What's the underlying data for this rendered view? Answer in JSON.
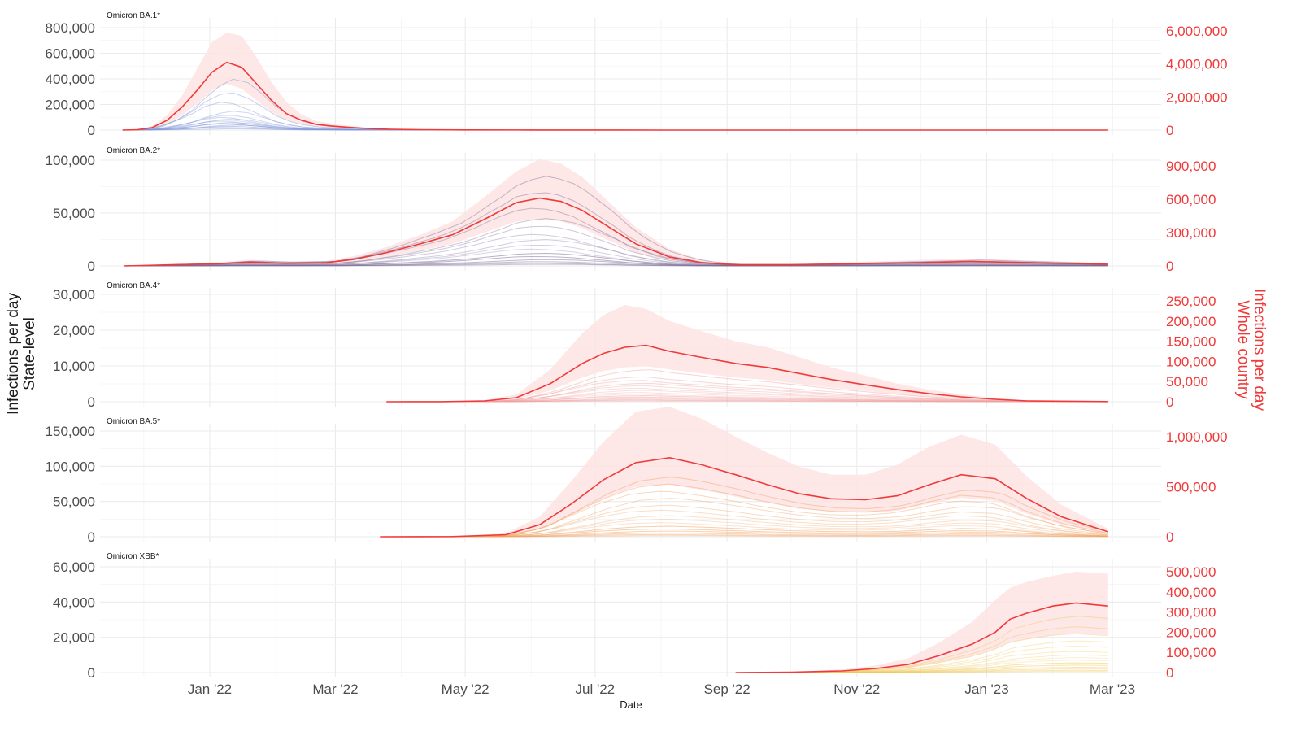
{
  "chart_data": {
    "type": "line",
    "xlabel": "Date",
    "ylabel_left": [
      "Infections per day",
      "State-level"
    ],
    "ylabel_right": [
      "Infections per day",
      "Whole country"
    ],
    "x_ticks": [
      "2022-01-01",
      "2022-03-01",
      "2022-05-01",
      "2022-07-01",
      "2022-09-01",
      "2022-11-01",
      "2023-01-01",
      "2023-03-01"
    ],
    "x_tick_labels": [
      "Jan '22",
      "Mar '22",
      "May '22",
      "Jul '22",
      "Sep '22",
      "Nov '22",
      "Jan '23",
      "Mar '23"
    ],
    "xlim": [
      "2021-11-01",
      "2023-03-15"
    ],
    "grid": true,
    "colors": {
      "country_line": "#f03a3a",
      "country_band": "#fde3e3",
      "right_axis": "#f03a3a",
      "axis_text": "#4d4d4d",
      "grid": "#ebebeb"
    },
    "panels": [
      {
        "title": "Omicron BA.1*",
        "state_color": "#7f95d8",
        "left_ticks": [
          0,
          200000,
          400000,
          600000,
          800000
        ],
        "left_tick_labels": [
          "0",
          "200,000",
          "400,000",
          "600,000",
          "800,000"
        ],
        "right_ticks": [
          0,
          2000000,
          4000000,
          6000000
        ],
        "right_tick_labels": [
          "0",
          "2,000,000",
          "4,000,000",
          "6,000,000"
        ],
        "left_ylim": [
          0,
          800000
        ],
        "right_ylim": [
          0,
          6200000
        ],
        "country": {
          "x": [
            "2021-11-21",
            "2021-11-28",
            "2021-12-05",
            "2021-12-12",
            "2021-12-19",
            "2021-12-26",
            "2022-01-02",
            "2022-01-09",
            "2022-01-16",
            "2022-01-23",
            "2022-01-30",
            "2022-02-06",
            "2022-02-13",
            "2022-02-20",
            "2022-02-27",
            "2022-03-06",
            "2022-03-13",
            "2022-03-20",
            "2022-03-27",
            "2022-04-10",
            "2022-05-01",
            "2022-06-01",
            "2022-08-01",
            "2022-10-01",
            "2022-12-01",
            "2023-01-15",
            "2023-02-27"
          ],
          "y": [
            0,
            20000,
            150000,
            600000,
            1400000,
            2400000,
            3500000,
            4100000,
            3800000,
            2800000,
            1800000,
            1000000,
            600000,
            350000,
            250000,
            180000,
            120000,
            80000,
            50000,
            25000,
            10000,
            5000,
            2000,
            1000,
            1000,
            500,
            500
          ],
          "lower": [
            0,
            10000,
            80000,
            350000,
            900000,
            1600000,
            2400000,
            2800000,
            2500000,
            1800000,
            1100000,
            600000,
            350000,
            200000,
            140000,
            100000,
            70000,
            45000,
            28000,
            14000,
            6000,
            3000,
            1000,
            500,
            500,
            300,
            300
          ],
          "upper": [
            0,
            30000,
            250000,
            900000,
            2100000,
            3700000,
            5300000,
            5900000,
            5700000,
            4400000,
            2900000,
            1700000,
            950000,
            560000,
            400000,
            280000,
            190000,
            120000,
            80000,
            40000,
            15000,
            8000,
            3000,
            1500,
            1500,
            800,
            800
          ]
        },
        "states_scale": [
          400000,
          300000,
          220000,
          150000,
          120000,
          100000,
          90000,
          80000,
          70000,
          60000,
          50000,
          40000,
          30000,
          20000,
          10000
        ]
      },
      {
        "title": "Omicron BA.2*",
        "state_color": "#7a6a96",
        "left_ticks": [
          0,
          50000,
          100000
        ],
        "left_tick_labels": [
          "0",
          "50,000",
          "100,000"
        ],
        "right_ticks": [
          0,
          300000,
          600000,
          900000
        ],
        "right_tick_labels": [
          "0",
          "300,000",
          "600,000",
          "900,000"
        ],
        "left_ylim": [
          0,
          140000
        ],
        "right_ylim": [
          0,
          1050000
        ],
        "country": {
          "x": [
            "2021-11-22",
            "2021-12-15",
            "2022-01-05",
            "2022-01-20",
            "2022-02-05",
            "2022-02-25",
            "2022-03-10",
            "2022-03-25",
            "2022-04-10",
            "2022-04-25",
            "2022-05-10",
            "2022-05-25",
            "2022-06-05",
            "2022-06-15",
            "2022-06-25",
            "2022-07-05",
            "2022-07-20",
            "2022-08-05",
            "2022-08-20",
            "2022-09-05",
            "2022-10-01",
            "2022-11-01",
            "2022-12-01",
            "2022-12-25",
            "2023-01-20",
            "2023-02-27"
          ],
          "y": [
            0,
            10000,
            20000,
            35000,
            25000,
            30000,
            60000,
            120000,
            200000,
            280000,
            420000,
            570000,
            610000,
            580000,
            500000,
            380000,
            200000,
            80000,
            30000,
            10000,
            10000,
            20000,
            30000,
            40000,
            30000,
            15000
          ],
          "lower": [
            0,
            5000,
            10000,
            20000,
            15000,
            18000,
            35000,
            80000,
            140000,
            200000,
            300000,
            400000,
            420000,
            400000,
            340000,
            250000,
            120000,
            45000,
            15000,
            5000,
            5000,
            10000,
            15000,
            20000,
            15000,
            8000
          ],
          "upper": [
            0,
            20000,
            35000,
            55000,
            40000,
            45000,
            90000,
            170000,
            280000,
            400000,
            620000,
            850000,
            960000,
            920000,
            800000,
            620000,
            350000,
            150000,
            55000,
            20000,
            20000,
            35000,
            55000,
            65000,
            50000,
            25000
          ]
        },
        "states_scale": [
          85000,
          70000,
          55000,
          45000,
          38000,
          30000,
          25000,
          20000,
          16000,
          12000,
          9000,
          6000,
          4000,
          2500,
          1500
        ]
      },
      {
        "title": "Omicron BA.4*",
        "state_color": "#f0a0a0",
        "left_ticks": [
          0,
          10000,
          20000,
          30000
        ],
        "left_tick_labels": [
          "0",
          "10,000",
          "20,000",
          "30,000"
        ],
        "right_ticks": [
          0,
          50000,
          100000,
          150000,
          200000,
          250000
        ],
        "right_tick_labels": [
          "0",
          "50,000",
          "100,000",
          "150,000",
          "200,000",
          "250,000"
        ],
        "left_ylim": [
          0,
          34000
        ],
        "right_ylim": [
          0,
          270000
        ],
        "country": {
          "x": [
            "2022-03-25",
            "2022-04-20",
            "2022-05-10",
            "2022-05-25",
            "2022-06-10",
            "2022-06-25",
            "2022-07-05",
            "2022-07-15",
            "2022-07-25",
            "2022-08-05",
            "2022-08-20",
            "2022-09-05",
            "2022-09-20",
            "2022-10-05",
            "2022-10-20",
            "2022-11-05",
            "2022-11-20",
            "2022-12-05",
            "2022-12-20",
            "2023-01-05",
            "2023-01-20",
            "2023-02-27"
          ],
          "y": [
            0,
            200,
            2000,
            10000,
            45000,
            95000,
            120000,
            135000,
            140000,
            125000,
            110000,
            95000,
            85000,
            70000,
            55000,
            42000,
            30000,
            20000,
            12000,
            6000,
            2000,
            500
          ],
          "lower": [
            0,
            100,
            1000,
            6000,
            28000,
            60000,
            76000,
            85000,
            88000,
            80000,
            70000,
            60000,
            54000,
            44000,
            35000,
            27000,
            19000,
            12000,
            7000,
            3500,
            1200,
            300
          ],
          "upper": [
            0,
            400,
            4000,
            18000,
            80000,
            170000,
            215000,
            240000,
            230000,
            200000,
            175000,
            150000,
            135000,
            110000,
            85000,
            65000,
            45000,
            30000,
            18000,
            9000,
            3500,
            800
          ]
        },
        "states_scale": [
          9000,
          7000,
          6000,
          5200,
          4500,
          3800,
          3200,
          2600,
          2100,
          1700,
          1300,
          900,
          600,
          400,
          200
        ]
      },
      {
        "title": "Omicron BA.5*",
        "state_color": "#f0a060",
        "left_ticks": [
          0,
          50000,
          100000,
          150000
        ],
        "left_tick_labels": [
          "0",
          "50,000",
          "100,000",
          "150,000"
        ],
        "right_ticks": [
          0,
          500000,
          1000000
        ],
        "right_tick_labels": [
          "0",
          "500,000",
          "1,000,000"
        ],
        "left_ylim": [
          0,
          180000
        ],
        "right_ylim": [
          0,
          1340000
        ],
        "country": {
          "x": [
            "2022-03-22",
            "2022-04-25",
            "2022-05-20",
            "2022-06-05",
            "2022-06-20",
            "2022-07-05",
            "2022-07-20",
            "2022-08-05",
            "2022-08-20",
            "2022-09-05",
            "2022-09-20",
            "2022-10-05",
            "2022-10-20",
            "2022-11-05",
            "2022-11-20",
            "2022-12-05",
            "2022-12-20",
            "2023-01-05",
            "2023-01-20",
            "2023-02-05",
            "2023-02-27"
          ],
          "y": [
            0,
            2000,
            20000,
            120000,
            330000,
            570000,
            740000,
            790000,
            720000,
            620000,
            520000,
            430000,
            380000,
            370000,
            410000,
            520000,
            620000,
            580000,
            380000,
            200000,
            50000
          ],
          "lower": [
            0,
            1000,
            12000,
            80000,
            220000,
            380000,
            500000,
            520000,
            470000,
            400000,
            340000,
            280000,
            250000,
            240000,
            260000,
            330000,
            390000,
            360000,
            230000,
            120000,
            30000
          ],
          "upper": [
            0,
            3000,
            35000,
            200000,
            560000,
            950000,
            1250000,
            1300000,
            1180000,
            1000000,
            840000,
            700000,
            620000,
            620000,
            720000,
            900000,
            1020000,
            920000,
            600000,
            320000,
            80000
          ]
        },
        "states_scale": [
          85000,
          75000,
          65000,
          55000,
          45000,
          38000,
          30000,
          25000,
          20000,
          15000,
          11000,
          8000,
          5000,
          3000,
          1500
        ]
      },
      {
        "title": "Omicron XBB*",
        "state_color": "#f0c85a",
        "left_ticks": [
          0,
          20000,
          40000,
          60000
        ],
        "left_tick_labels": [
          "0",
          "20,000",
          "40,000",
          "60,000"
        ],
        "right_ticks": [
          0,
          100000,
          200000,
          300000,
          400000,
          500000
        ],
        "right_tick_labels": [
          "0",
          "100,000",
          "200,000",
          "300,000",
          "400,000",
          "500,000"
        ],
        "left_ylim": [
          0,
          68000
        ],
        "right_ylim": [
          0,
          545000
        ],
        "country": {
          "x": [
            "2022-09-05",
            "2022-10-01",
            "2022-10-25",
            "2022-11-10",
            "2022-11-25",
            "2022-12-10",
            "2022-12-25",
            "2023-01-05",
            "2023-01-12",
            "2023-01-20",
            "2023-02-01",
            "2023-02-12",
            "2023-02-27"
          ],
          "y": [
            0,
            2000,
            8000,
            20000,
            40000,
            85000,
            140000,
            200000,
            265000,
            295000,
            330000,
            345000,
            330000
          ],
          "lower": [
            0,
            1000,
            4000,
            12000,
            25000,
            50000,
            80000,
            115000,
            150000,
            165000,
            185000,
            195000,
            185000
          ],
          "upper": [
            0,
            3500,
            15000,
            35000,
            70000,
            150000,
            250000,
            360000,
            420000,
            450000,
            480000,
            500000,
            490000
          ]
        },
        "states_scale": [
          32000,
          26000,
          22000,
          18000,
          15000,
          12000,
          10000,
          8500,
          7000,
          5500,
          4200,
          3000,
          2000,
          1200,
          600
        ]
      }
    ]
  }
}
